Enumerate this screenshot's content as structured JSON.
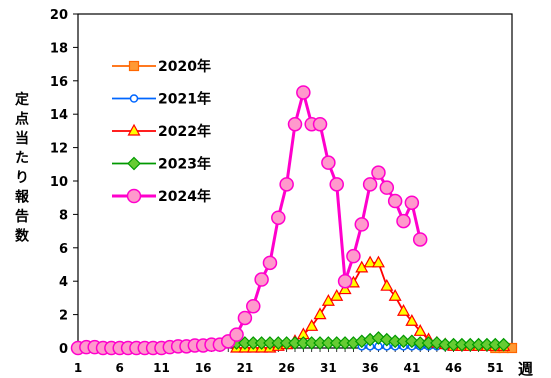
{
  "chart_data": {
    "type": "line",
    "ylabel": "定点当たり報告数",
    "xlabel": "週",
    "xlim": [
      1,
      53
    ],
    "ylim": [
      0,
      20
    ],
    "y_ticks": [
      0,
      2,
      4,
      6,
      8,
      10,
      12,
      14,
      16,
      18,
      20
    ],
    "x_ticks": [
      1,
      6,
      11,
      16,
      21,
      26,
      31,
      36,
      41,
      46,
      51
    ],
    "grid": false,
    "legend_position": "top-left",
    "series": [
      {
        "name": "2020年",
        "color": "#ff6600",
        "fill": "#ff9933",
        "marker": "square",
        "weeks": [
          51,
          52,
          53
        ],
        "values": [
          0.0,
          0.0,
          0.0
        ]
      },
      {
        "name": "2021年",
        "color": "#0066ff",
        "fill": "#ffffff",
        "marker": "circle",
        "weeks": [
          35,
          36,
          37,
          38,
          39,
          40,
          41,
          42,
          43,
          44,
          45,
          46,
          47,
          48,
          49,
          50,
          51,
          52
        ],
        "values": [
          0.1,
          0.1,
          0.1,
          0.1,
          0.1,
          0.1,
          0.1,
          0.1,
          0.1,
          0.1,
          0.1,
          0.1,
          0.1,
          0.1,
          0.1,
          0.1,
          0.1,
          0.1
        ]
      },
      {
        "name": "2022年",
        "color": "#ff0000",
        "fill": "#ffff00",
        "marker": "triangle",
        "weeks": [
          20,
          21,
          22,
          23,
          24,
          25,
          26,
          27,
          28,
          29,
          30,
          31,
          32,
          33,
          34,
          35,
          36,
          37,
          38,
          39,
          40,
          41,
          42,
          43,
          44,
          45,
          46,
          47,
          48,
          49,
          50,
          51,
          52
        ],
        "values": [
          0.0,
          0.0,
          0.0,
          0.0,
          0.0,
          0.1,
          0.2,
          0.4,
          0.8,
          1.3,
          2.0,
          2.8,
          3.1,
          3.5,
          3.9,
          4.8,
          5.1,
          5.1,
          3.7,
          3.1,
          2.2,
          1.6,
          1.0,
          0.5,
          0.3,
          0.2,
          0.1,
          0.1,
          0.1,
          0.1,
          0.1,
          0.1,
          0.1
        ]
      },
      {
        "name": "2023年",
        "color": "#009900",
        "fill": "#66cc33",
        "marker": "diamond",
        "weeks": [
          20,
          21,
          22,
          23,
          24,
          25,
          26,
          27,
          28,
          29,
          30,
          31,
          32,
          33,
          34,
          35,
          36,
          37,
          38,
          39,
          40,
          41,
          42,
          43,
          44,
          45,
          46,
          47,
          48,
          49,
          50,
          51,
          52
        ],
        "values": [
          0.3,
          0.3,
          0.3,
          0.3,
          0.3,
          0.3,
          0.3,
          0.3,
          0.3,
          0.3,
          0.3,
          0.3,
          0.3,
          0.3,
          0.3,
          0.4,
          0.5,
          0.6,
          0.5,
          0.4,
          0.4,
          0.4,
          0.3,
          0.3,
          0.3,
          0.2,
          0.2,
          0.2,
          0.2,
          0.2,
          0.2,
          0.2,
          0.2
        ]
      },
      {
        "name": "2024年",
        "color": "#ff00cc",
        "fill": "#ff99cc",
        "marker": "circle",
        "weeks": [
          1,
          2,
          3,
          4,
          5,
          6,
          7,
          8,
          9,
          10,
          11,
          12,
          13,
          14,
          15,
          16,
          17,
          18,
          19,
          20,
          21,
          22,
          23,
          24,
          25,
          26,
          27,
          28,
          29,
          30,
          31,
          32,
          33,
          34,
          35,
          36,
          37,
          38,
          39,
          40,
          41,
          42
        ],
        "values": [
          0.0,
          0.05,
          0.05,
          0.0,
          0.0,
          0.0,
          0.0,
          0.0,
          0.0,
          0.0,
          0.0,
          0.05,
          0.1,
          0.1,
          0.15,
          0.15,
          0.2,
          0.2,
          0.4,
          0.8,
          1.8,
          2.5,
          4.1,
          5.1,
          7.8,
          9.8,
          13.4,
          15.3,
          13.4,
          13.4,
          11.1,
          9.8,
          4.0,
          5.5,
          7.4,
          9.8,
          10.5,
          9.6,
          8.8,
          7.6,
          8.7,
          6.5
        ]
      }
    ]
  }
}
